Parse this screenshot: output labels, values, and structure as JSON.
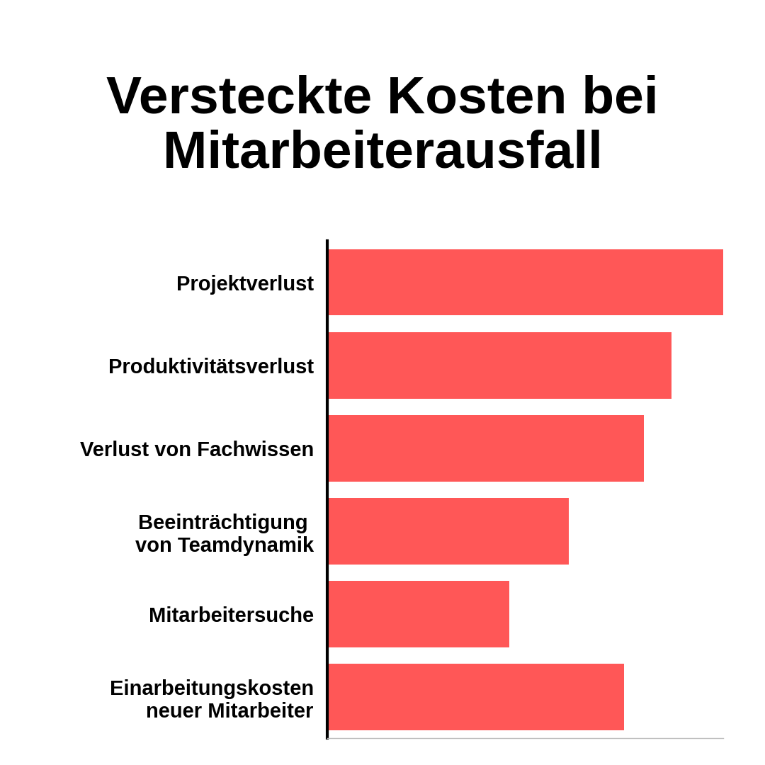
{
  "chart_data": {
    "type": "bar",
    "orientation": "horizontal",
    "title": "Versteckte Kosten bei\nMitarbeiterausfall",
    "categories": [
      "Projektverlust",
      "Produktivitätsverlust",
      "Verlust von Fachwissen",
      "Beeinträchtigung \nvon Teamdynamik",
      "Mitarbeitersuche",
      "Einarbeitungskosten\nneuer Mitarbeiter"
    ],
    "values": [
      100,
      87,
      80,
      61,
      46,
      75
    ],
    "color": "#ff5757",
    "xlim": [
      0,
      100
    ],
    "grid": false,
    "data_labels": false,
    "tick_labels": "y"
  }
}
